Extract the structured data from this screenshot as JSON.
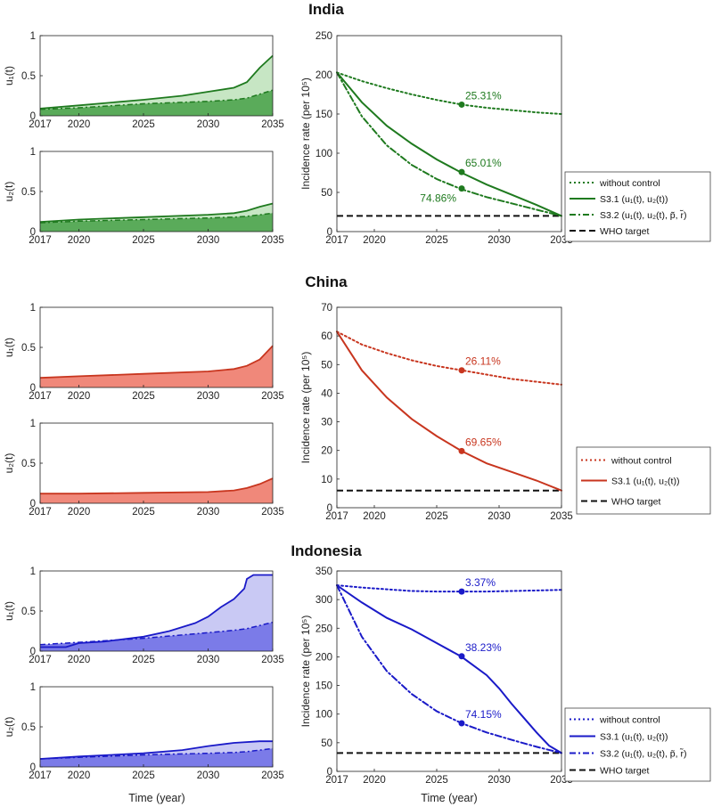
{
  "figure": {
    "xlabel": "Time (year)",
    "legend_labels": {
      "none": "without control",
      "s31": "S3.1 (u₁(t), u₂(t))",
      "s32": "S3.2 (u₁(t), u₂(t), p̃, r̃)",
      "who": "WHO target"
    }
  },
  "chart_data": [
    {
      "country": "India",
      "color_line": "#1f7a1f",
      "color_fill": "#5aab5a",
      "color_light": "#c7e6c4",
      "u1": {
        "type": "area",
        "ylabel": "u₁(t)",
        "xlim": [
          2017,
          2035
        ],
        "ylim": [
          0,
          1
        ],
        "xticks": [
          2017,
          2020,
          2025,
          2030,
          2035
        ],
        "yticks": [
          0,
          0.5,
          1
        ],
        "s31": {
          "x": [
            2017,
            2020,
            2025,
            2028,
            2030,
            2032,
            2033,
            2034,
            2035
          ],
          "y": [
            0.09,
            0.13,
            0.2,
            0.25,
            0.3,
            0.35,
            0.42,
            0.6,
            0.75
          ]
        },
        "s32": {
          "x": [
            2017,
            2020,
            2025,
            2030,
            2032,
            2033,
            2034,
            2035
          ],
          "y": [
            0.08,
            0.1,
            0.15,
            0.18,
            0.2,
            0.22,
            0.27,
            0.32
          ]
        }
      },
      "u2": {
        "type": "area",
        "ylabel": "u₂(t)",
        "xlim": [
          2017,
          2035
        ],
        "ylim": [
          0,
          1
        ],
        "xticks": [
          2017,
          2020,
          2025,
          2030,
          2035
        ],
        "yticks": [
          0,
          0.5,
          1
        ],
        "s31": {
          "x": [
            2017,
            2020,
            2025,
            2030,
            2032,
            2033,
            2034,
            2035
          ],
          "y": [
            0.12,
            0.15,
            0.18,
            0.21,
            0.23,
            0.26,
            0.31,
            0.35
          ]
        },
        "s32": {
          "x": [
            2017,
            2020,
            2025,
            2030,
            2032,
            2033,
            2034,
            2035
          ],
          "y": [
            0.11,
            0.13,
            0.15,
            0.17,
            0.18,
            0.19,
            0.21,
            0.23
          ]
        }
      },
      "incidence": {
        "type": "line",
        "ylabel": "Incidence rate (per 10⁵)",
        "xlim": [
          2017,
          2035
        ],
        "ylim": [
          0,
          250
        ],
        "xticks": [
          2017,
          2020,
          2025,
          2030,
          2035
        ],
        "yticks": [
          0,
          50,
          100,
          150,
          200,
          250
        ],
        "who_target": 20,
        "series": [
          {
            "key": "none",
            "x": [
              2017,
              2019,
              2021,
              2023,
              2025,
              2027,
              2029,
              2031,
              2033,
              2035
            ],
            "y": [
              203,
              192,
              183,
              175,
              168,
              162,
              158,
              155,
              152,
              150
            ]
          },
          {
            "key": "s31",
            "x": [
              2017,
              2019,
              2021,
              2023,
              2025,
              2027,
              2029,
              2031,
              2033,
              2035
            ],
            "y": [
              203,
              165,
              135,
              112,
              92,
              75,
              60,
              47,
              34,
              20
            ]
          },
          {
            "key": "s32",
            "x": [
              2017,
              2019,
              2021,
              2023,
              2025,
              2027,
              2029,
              2031,
              2033,
              2035
            ],
            "y": [
              203,
              147,
              110,
              85,
              67,
              54,
              44,
              36,
              28,
              20
            ]
          }
        ],
        "annotations": [
          {
            "x": 2027,
            "y": 162,
            "label": "25.31%",
            "series": "none",
            "side": "right"
          },
          {
            "x": 2027,
            "y": 76,
            "label": "65.01%",
            "series": "s31",
            "side": "right"
          },
          {
            "x": 2027,
            "y": 55,
            "label": "74.86%",
            "series": "s32",
            "side": "below-left"
          }
        ],
        "legend": [
          "none",
          "s31",
          "s32",
          "who"
        ]
      }
    },
    {
      "country": "China",
      "color_line": "#c8361f",
      "color_fill": "#f0887a",
      "color_light": "#f7c3bb",
      "u1": {
        "type": "area",
        "ylabel": "u₁(t)",
        "xlim": [
          2017,
          2035
        ],
        "ylim": [
          0,
          1
        ],
        "xticks": [
          2017,
          2020,
          2025,
          2030,
          2035
        ],
        "yticks": [
          0,
          0.5,
          1
        ],
        "s31": {
          "x": [
            2017,
            2020,
            2025,
            2030,
            2032,
            2033,
            2034,
            2035
          ],
          "y": [
            0.12,
            0.14,
            0.17,
            0.2,
            0.23,
            0.27,
            0.35,
            0.52
          ]
        }
      },
      "u2": {
        "type": "area",
        "ylabel": "u₂(t)",
        "xlim": [
          2017,
          2035
        ],
        "ylim": [
          0,
          1
        ],
        "xticks": [
          2017,
          2020,
          2025,
          2030,
          2035
        ],
        "yticks": [
          0,
          0.5,
          1
        ],
        "s31": {
          "x": [
            2017,
            2020,
            2025,
            2030,
            2032,
            2033,
            2034,
            2035
          ],
          "y": [
            0.12,
            0.12,
            0.13,
            0.14,
            0.16,
            0.19,
            0.24,
            0.31
          ]
        }
      },
      "incidence": {
        "type": "line",
        "ylabel": "Incidence rate (per 10⁵)",
        "xlim": [
          2017,
          2035
        ],
        "ylim": [
          0,
          70
        ],
        "xticks": [
          2017,
          2020,
          2025,
          2030,
          2035
        ],
        "yticks": [
          0,
          10,
          20,
          30,
          40,
          50,
          60,
          70
        ],
        "who_target": 6,
        "series": [
          {
            "key": "none",
            "x": [
              2017,
              2019,
              2021,
              2023,
              2025,
              2027,
              2029,
              2031,
              2033,
              2035
            ],
            "y": [
              61.5,
              57,
              54,
              51.5,
              49.5,
              48,
              46.5,
              45,
              44,
              43
            ]
          },
          {
            "key": "s31",
            "x": [
              2017,
              2019,
              2021,
              2023,
              2025,
              2027,
              2029,
              2031,
              2033,
              2035
            ],
            "y": [
              61.5,
              48,
              38.5,
              31,
              25,
              19.8,
              15.5,
              12.5,
              9.5,
              6
            ]
          }
        ],
        "annotations": [
          {
            "x": 2027,
            "y": 48,
            "label": "26.11%",
            "series": "none",
            "side": "right"
          },
          {
            "x": 2027,
            "y": 19.8,
            "label": "69.65%",
            "series": "s31",
            "side": "right"
          }
        ],
        "legend": [
          "none",
          "s31",
          "who"
        ]
      }
    },
    {
      "country": "Indonesia",
      "color_line": "#1a1ac8",
      "color_fill": "#7b7be8",
      "color_light": "#c9c9f4",
      "u1": {
        "type": "area",
        "ylabel": "u₁(t)",
        "xlim": [
          2017,
          2035
        ],
        "ylim": [
          0,
          1
        ],
        "xticks": [
          2017,
          2020,
          2025,
          2030,
          2035
        ],
        "yticks": [
          0,
          0.5,
          1
        ],
        "s31": {
          "x": [
            2017,
            2019,
            2020,
            2022,
            2025,
            2027,
            2029,
            2030,
            2031,
            2032,
            2032.8,
            2033,
            2033.5,
            2034,
            2035
          ],
          "y": [
            0.05,
            0.05,
            0.1,
            0.12,
            0.18,
            0.25,
            0.35,
            0.43,
            0.55,
            0.65,
            0.78,
            0.9,
            0.95,
            0.95,
            0.95
          ]
        },
        "s32": {
          "x": [
            2017,
            2020,
            2025,
            2030,
            2032,
            2033,
            2034,
            2035
          ],
          "y": [
            0.08,
            0.11,
            0.16,
            0.23,
            0.26,
            0.28,
            0.32,
            0.36
          ]
        }
      },
      "u2": {
        "type": "area",
        "ylabel": "u₂(t)",
        "xlim": [
          2017,
          2035
        ],
        "ylim": [
          0,
          1
        ],
        "xticks": [
          2017,
          2020,
          2025,
          2030,
          2035
        ],
        "yticks": [
          0,
          0.5,
          1
        ],
        "s31": {
          "x": [
            2017,
            2020,
            2025,
            2028,
            2030,
            2032,
            2034,
            2035
          ],
          "y": [
            0.1,
            0.13,
            0.17,
            0.21,
            0.26,
            0.3,
            0.32,
            0.32
          ]
        },
        "s32": {
          "x": [
            2017,
            2020,
            2025,
            2030,
            2032,
            2033,
            2034,
            2035
          ],
          "y": [
            0.1,
            0.12,
            0.15,
            0.17,
            0.18,
            0.19,
            0.21,
            0.23
          ]
        }
      },
      "incidence": {
        "type": "line",
        "ylabel": "Incidence rate (per 10⁵)",
        "xlim": [
          2017,
          2035
        ],
        "ylim": [
          0,
          350
        ],
        "xticks": [
          2017,
          2020,
          2025,
          2030,
          2035
        ],
        "yticks": [
          0,
          50,
          100,
          150,
          200,
          250,
          300,
          350
        ],
        "who_target": 32,
        "series": [
          {
            "key": "none",
            "x": [
              2017,
              2019,
              2021,
              2023,
              2025,
              2027,
              2029,
              2031,
              2033,
              2035
            ],
            "y": [
              325,
              321,
              318,
              315,
              314,
              314,
              314,
              315,
              316,
              317
            ]
          },
          {
            "key": "s31",
            "x": [
              2017,
              2019,
              2021,
              2023,
              2025,
              2027,
              2029,
              2030,
              2031,
              2032,
              2033,
              2034,
              2035
            ],
            "y": [
              325,
              295,
              268,
              248,
              224,
              200,
              168,
              145,
              118,
              93,
              68,
              45,
              32
            ]
          },
          {
            "key": "s32",
            "x": [
              2017,
              2019,
              2021,
              2023,
              2025,
              2027,
              2029,
              2031,
              2033,
              2035
            ],
            "y": [
              325,
              235,
              175,
              135,
              105,
              84,
              68,
              55,
              43,
              32
            ]
          }
        ],
        "annotations": [
          {
            "x": 2027,
            "y": 314,
            "label": "3.37%",
            "series": "none",
            "side": "right"
          },
          {
            "x": 2027,
            "y": 201,
            "label": "38.23%",
            "series": "s31",
            "side": "right"
          },
          {
            "x": 2027,
            "y": 84,
            "label": "74.15%",
            "series": "s32",
            "side": "right"
          }
        ],
        "legend": [
          "none",
          "s31",
          "s32",
          "who"
        ]
      }
    }
  ]
}
